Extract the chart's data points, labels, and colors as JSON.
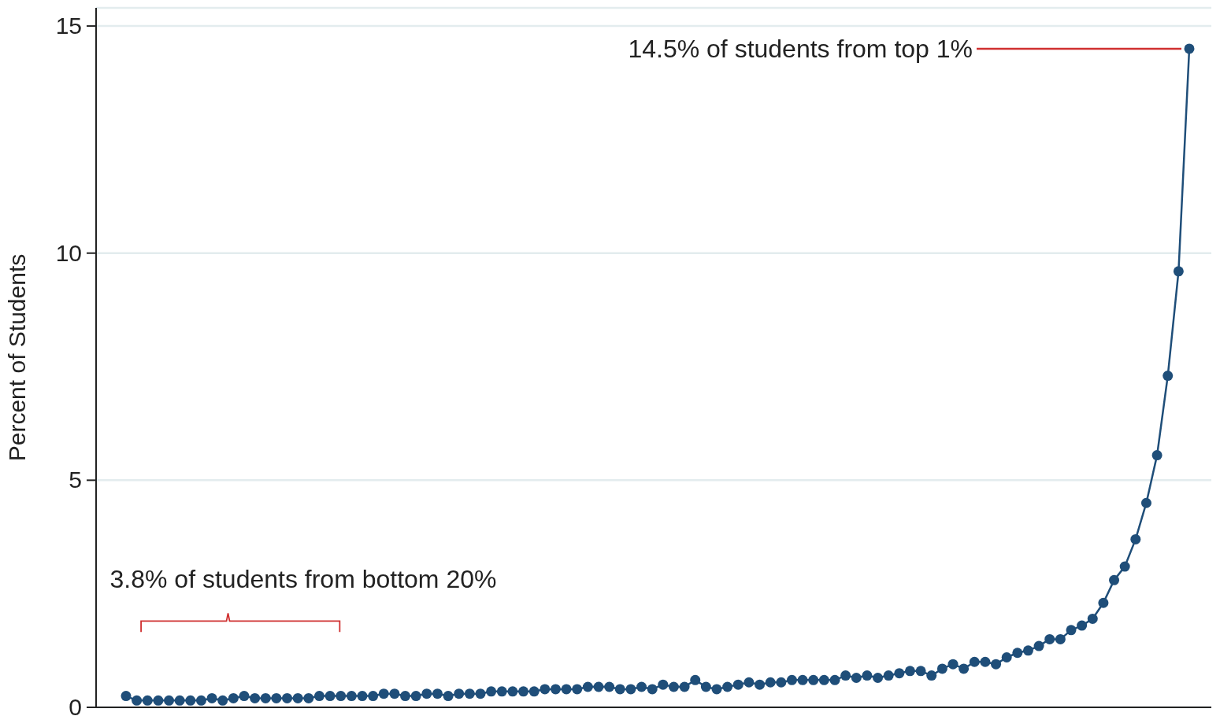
{
  "chart_data": {
    "type": "line",
    "ylabel": "Percent of Students",
    "categories": [
      null,
      null,
      null,
      null,
      null,
      null,
      null,
      null,
      null,
      null,
      null,
      null,
      null,
      null,
      null,
      null,
      null,
      null,
      null,
      null,
      null,
      null,
      null,
      null,
      null,
      null,
      null,
      null,
      null,
      null,
      null,
      null,
      null,
      null,
      null,
      null,
      null,
      null,
      null,
      null,
      null,
      null,
      null,
      null,
      null,
      null,
      null,
      null,
      null,
      null,
      null,
      null,
      null,
      null,
      null,
      null,
      null,
      null,
      null,
      null,
      null,
      null,
      null,
      null,
      null,
      null,
      null,
      null,
      null,
      null,
      null,
      null,
      null,
      null,
      null,
      null,
      null,
      null,
      null,
      null,
      null,
      null,
      null,
      null,
      null,
      null,
      null,
      null,
      null,
      null,
      null,
      null,
      null,
      null,
      null,
      null,
      null,
      null,
      null,
      null
    ],
    "series": [
      {
        "color": "#1f4e79",
        "values": [
          0.25,
          0.15,
          0.15,
          0.15,
          0.15,
          0.15,
          0.15,
          0.15,
          0.2,
          0.15,
          0.2,
          0.25,
          0.2,
          0.2,
          0.2,
          0.2,
          0.2,
          0.2,
          0.25,
          0.25,
          0.25,
          0.25,
          0.25,
          0.25,
          0.3,
          0.3,
          0.25,
          0.25,
          0.3,
          0.3,
          0.25,
          0.3,
          0.3,
          0.3,
          0.35,
          0.35,
          0.35,
          0.35,
          0.35,
          0.4,
          0.4,
          0.4,
          0.4,
          0.45,
          0.45,
          0.45,
          0.4,
          0.4,
          0.45,
          0.4,
          0.5,
          0.45,
          0.45,
          0.6,
          0.45,
          0.4,
          0.45,
          0.5,
          0.55,
          0.5,
          0.55,
          0.55,
          0.6,
          0.6,
          0.6,
          0.6,
          0.6,
          0.7,
          0.65,
          0.7,
          0.65,
          0.7,
          0.75,
          0.8,
          0.8,
          0.7,
          0.85,
          0.95,
          0.85,
          1.0,
          1.0,
          0.95,
          1.1,
          1.2,
          1.25,
          1.35,
          1.5,
          1.5,
          1.7,
          1.8,
          1.95,
          2.3,
          2.8,
          3.1,
          3.7,
          4.5,
          5.55,
          7.3,
          9.6,
          14.5
        ]
      }
    ],
    "ylim": [
      0,
      15.4
    ],
    "yticks": [
      0,
      5,
      10,
      15
    ],
    "grid": "y",
    "marker": "circle",
    "line_style": "solid",
    "annotations": [
      "14.5% of students from top 1%",
      "3.8% of students from bottom 20%"
    ]
  }
}
